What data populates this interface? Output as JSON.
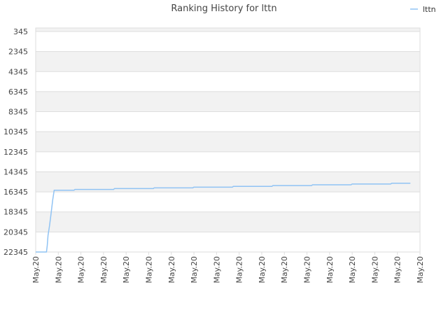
{
  "chart_data": {
    "type": "line",
    "title": "Ranking History for lttn",
    "xlabel": "",
    "ylabel": "",
    "y_inverted": true,
    "ylim": [
      345,
      22345
    ],
    "y_ticks": [
      "345",
      "2345",
      "4345",
      "6345",
      "8345",
      "10345",
      "12345",
      "14345",
      "16345",
      "18345",
      "20345",
      "22345"
    ],
    "x_ticks": [
      "May.20",
      "May.20",
      "May.20",
      "May.20",
      "May.20",
      "May.20",
      "May.20",
      "May.20",
      "May.20",
      "May.20",
      "May.20",
      "May.20",
      "May.20",
      "May.20",
      "May.20",
      "May.20",
      "May.20",
      "May.20"
    ],
    "legend_position": "top-right",
    "grid": true,
    "series": [
      {
        "name": "lttn",
        "color": "#90c3f4",
        "points": [
          [
            0.0,
            22345
          ],
          [
            0.028,
            22345
          ],
          [
            0.03,
            21700
          ],
          [
            0.032,
            20700
          ],
          [
            0.036,
            19700
          ],
          [
            0.04,
            18500
          ],
          [
            0.044,
            17200
          ],
          [
            0.048,
            16180
          ],
          [
            0.1,
            16180
          ],
          [
            0.102,
            16100
          ],
          [
            0.203,
            16100
          ],
          [
            0.205,
            16020
          ],
          [
            0.306,
            16020
          ],
          [
            0.308,
            15950
          ],
          [
            0.409,
            15950
          ],
          [
            0.411,
            15880
          ],
          [
            0.512,
            15880
          ],
          [
            0.514,
            15800
          ],
          [
            0.615,
            15800
          ],
          [
            0.617,
            15720
          ],
          [
            0.718,
            15720
          ],
          [
            0.72,
            15640
          ],
          [
            0.821,
            15640
          ],
          [
            0.823,
            15560
          ],
          [
            0.924,
            15560
          ],
          [
            0.926,
            15490
          ],
          [
            0.975,
            15490
          ]
        ]
      }
    ]
  },
  "colors": {
    "band": "#f2f2f2",
    "plot_bg": "#ffffff",
    "grid": "#dddddd",
    "border": "#dddddd"
  }
}
